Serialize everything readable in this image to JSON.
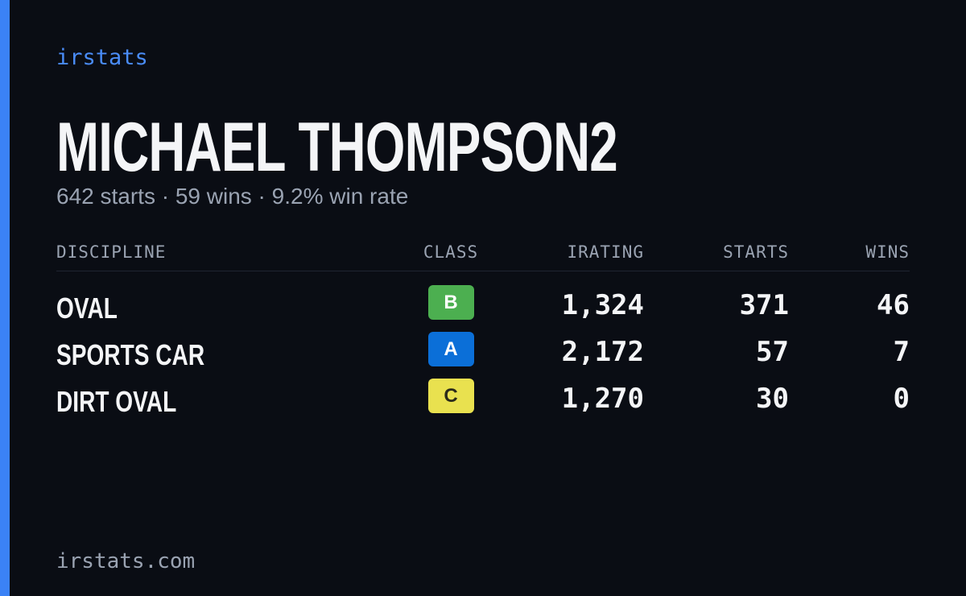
{
  "brand": "irstats",
  "name": "MICHAEL THOMPSON2",
  "summary": "642 starts · 59 wins · 9.2% win rate",
  "table": {
    "headers": [
      "DISCIPLINE",
      "CLASS",
      "IRATING",
      "STARTS",
      "WINS"
    ],
    "rows": [
      {
        "discipline": "OVAL",
        "class": "B",
        "class_color": "#4caf50",
        "class_text_color": "#ffffff",
        "irating": "1,324",
        "starts": 371,
        "wins": 46
      },
      {
        "discipline": "SPORTS CAR",
        "class": "A",
        "class_color": "#0b6fd8",
        "class_text_color": "#ffffff",
        "irating": "2,172",
        "starts": 57,
        "wins": 7
      },
      {
        "discipline": "DIRT OVAL",
        "class": "C",
        "class_color": "#e9e14f",
        "class_text_color": "#2a2a1a",
        "irating": "1,270",
        "starts": 30,
        "wins": 0
      }
    ]
  },
  "footer": "irstats.com"
}
